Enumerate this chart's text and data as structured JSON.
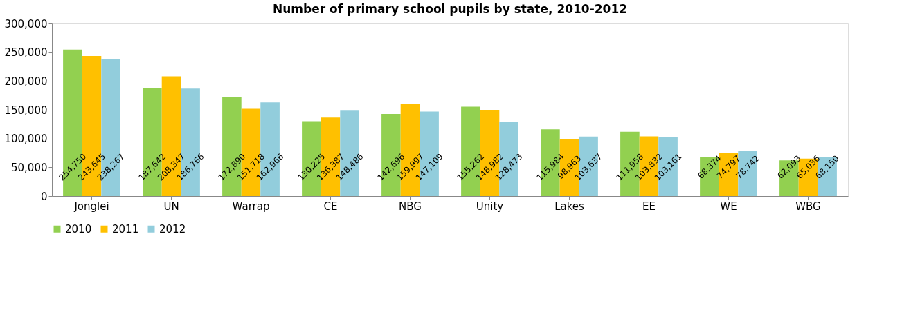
{
  "chart_data": {
    "type": "bar",
    "title": "Number of primary school pupils by state, 2010-2012",
    "categories": [
      "Jonglei",
      "UN",
      "Warrap",
      "CE",
      "NBG",
      "Unity",
      "Lakes",
      "EE",
      "WE",
      "WBG"
    ],
    "series": [
      {
        "name": "2010",
        "color": "#92d050",
        "values": [
          254750,
          187642,
          172890,
          130225,
          142696,
          155262,
          115984,
          111958,
          68374,
          62093
        ],
        "value_labels": [
          "254,750",
          "187,642",
          "172,890",
          "130,225",
          "142,696",
          "155,262",
          "115,984",
          "111,958",
          "68,374",
          "62,093"
        ]
      },
      {
        "name": "2011",
        "color": "#ffc000",
        "values": [
          243645,
          208347,
          151718,
          136387,
          159997,
          148982,
          98963,
          103832,
          74797,
          65036
        ],
        "value_labels": [
          "243,645",
          "208,347",
          "151,718",
          "136,387",
          "159,997",
          "148,982",
          "98,963",
          "103,832",
          "74,797",
          "65,036"
        ]
      },
      {
        "name": "2012",
        "color": "#92cddc",
        "values": [
          238267,
          186766,
          162966,
          148486,
          147109,
          128473,
          103637,
          103161,
          78742,
          68150
        ],
        "value_labels": [
          "238,267",
          "186,766",
          "162,966",
          "148,486",
          "147,109",
          "128,473",
          "103,637",
          "103,161",
          "78,742",
          "68,150"
        ]
      }
    ],
    "ylim": [
      0,
      300000
    ],
    "yticks": [
      0,
      {
        "value": 50000,
        "label": "50,000"
      },
      {
        "value": 100000,
        "label": "100,000"
      },
      {
        "value": 150000,
        "label": "150,000"
      },
      {
        "value": 200000,
        "label": "200,000"
      },
      {
        "value": 250000,
        "label": "250,000"
      },
      {
        "value": 300000,
        "label": "300,000"
      }
    ],
    "grid": false,
    "legend": "bottom"
  }
}
